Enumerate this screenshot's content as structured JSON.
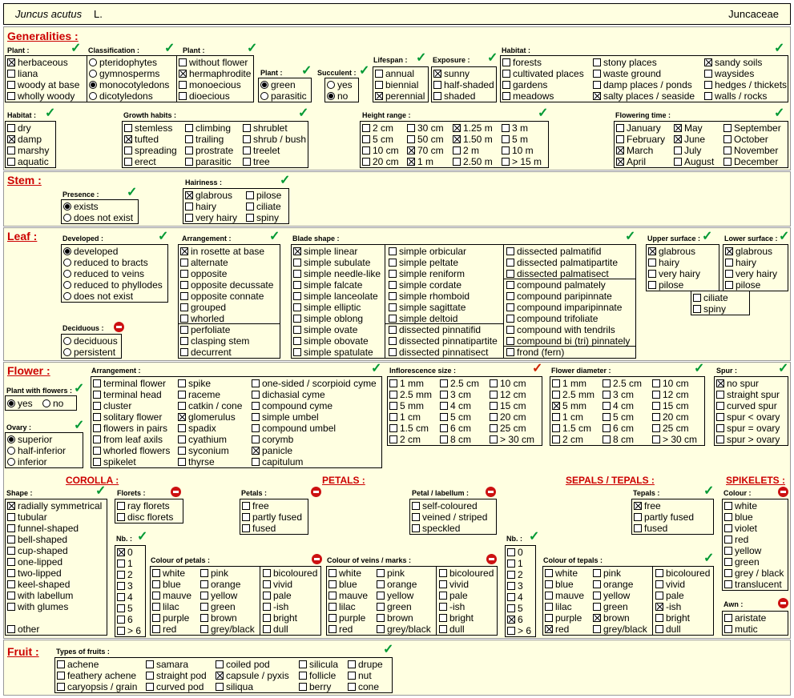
{
  "header": {
    "species": "Juncus acutus",
    "author": "L.",
    "family": "Juncaceae"
  },
  "sections": {
    "generalities": "Generalities :",
    "stem": "Stem :",
    "leaf": "Leaf :",
    "flower": "Flower :",
    "fruit": "Fruit :"
  },
  "subsections": {
    "corolla": "COROLLA :",
    "petals": "PETALS :",
    "sepals": "SEPALS / TEPALS :",
    "spikelets": "SPIKELETS :"
  },
  "labels": {
    "plant_type": "Plant :",
    "classification": "Classification :",
    "plant_flowers": "Plant :",
    "plant_color": "Plant :",
    "succulent": "Succulent :",
    "lifespan": "Lifespan :",
    "exposure": "Exposure :",
    "habitat": "Habitat :",
    "habitat_moist": "Habitat :",
    "growth_habits": "Growth habits :",
    "height_range": "Height range :",
    "flowering_time": "Flowering time :",
    "presence": "Presence :",
    "hairiness": "Hairiness :",
    "developed": "Developed :",
    "arrangement": "Arrangement :",
    "blade_shape": "Blade shape :",
    "upper_surface": "Upper surface :",
    "lower_surface": "Lower surface :",
    "deciduous": "Deciduous :",
    "flower_arrangement": "Arrangement :",
    "plant_with_flowers": "Plant with flowers :",
    "ovary": "Ovary :",
    "inflorescence_size": "Inflorescence size :",
    "flower_diameter": "Flower diameter :",
    "spur": "Spur :",
    "shape": "Shape :",
    "florets": "Florets :",
    "nb": "Nb. :",
    "colour_petals": "Colour of petals :",
    "petals": "Petals :",
    "petal_labellum": "Petal / labellum :",
    "colour_veins": "Colour of veins / marks :",
    "nb_sepals": "Nb. :",
    "colour_tepals": "Colour of tepals :",
    "tepals": "Tepals :",
    "colour": "Colour :",
    "awn": "Awn :",
    "types_of_fruits": "Types of fruits :"
  },
  "groups": {
    "plant_type": [
      [
        "herbaceous",
        1
      ],
      [
        "liana",
        0
      ],
      [
        "woody at base",
        0
      ],
      [
        "wholly woody",
        0
      ]
    ],
    "classification": [
      [
        "pteridophytes",
        0
      ],
      [
        "gymnosperms",
        0
      ],
      [
        "monocotyledons",
        1
      ],
      [
        "dicotyledons",
        0
      ]
    ],
    "plant_flowers": [
      [
        "without flower",
        0
      ],
      [
        "hermaphrodite",
        1
      ],
      [
        "monoecious",
        0
      ],
      [
        "dioecious",
        0
      ]
    ],
    "plant_color": [
      [
        "green",
        1
      ],
      [
        "parasitic",
        0
      ]
    ],
    "succulent": [
      [
        "yes",
        0
      ],
      [
        "no",
        1
      ]
    ],
    "lifespan": [
      [
        "annual",
        0
      ],
      [
        "biennial",
        0
      ],
      [
        "perennial",
        1
      ]
    ],
    "exposure": [
      [
        "sunny",
        1
      ],
      [
        "half-shaded",
        0
      ],
      [
        "shaded",
        0
      ]
    ],
    "habitat_a": [
      [
        "forests",
        0
      ],
      [
        "cultivated places",
        0
      ],
      [
        "gardens",
        0
      ],
      [
        "meadows",
        0
      ]
    ],
    "habitat_b": [
      [
        "stony places",
        0
      ],
      [
        "waste ground",
        0
      ],
      [
        "damp places / ponds",
        0
      ],
      [
        "salty places / seaside",
        1
      ]
    ],
    "habitat_c": [
      [
        "sandy soils",
        1
      ],
      [
        "waysides",
        0
      ],
      [
        "hedges / thickets",
        0
      ],
      [
        "walls / rocks",
        0
      ]
    ],
    "habitat_moist": [
      [
        "dry",
        0
      ],
      [
        "damp",
        1
      ],
      [
        "marshy",
        0
      ],
      [
        "aquatic",
        0
      ]
    ],
    "growth_a": [
      [
        "stemless",
        0
      ],
      [
        "tufted",
        1
      ],
      [
        "spreading",
        0
      ],
      [
        "erect",
        0
      ]
    ],
    "growth_b": [
      [
        "climbing",
        0
      ],
      [
        "trailing",
        0
      ],
      [
        "prostrate",
        0
      ],
      [
        "parasitic",
        0
      ]
    ],
    "growth_c": [
      [
        "shrublet",
        0
      ],
      [
        "shrub / bush",
        0
      ],
      [
        "treelet",
        0
      ],
      [
        "tree",
        0
      ]
    ],
    "height_a": [
      [
        "2 cm",
        0
      ],
      [
        "5 cm",
        0
      ],
      [
        "10 cm",
        0
      ],
      [
        "20 cm",
        0
      ]
    ],
    "height_b": [
      [
        "30 cm",
        0
      ],
      [
        "50 cm",
        0
      ],
      [
        "70 cm",
        1
      ],
      [
        "1 m",
        1
      ]
    ],
    "height_c": [
      [
        "1.25 m",
        1
      ],
      [
        "1.50 m",
        1
      ],
      [
        "2 m",
        0
      ],
      [
        "2.50 m",
        0
      ]
    ],
    "height_d": [
      [
        "3 m",
        0
      ],
      [
        "5 m",
        0
      ],
      [
        "10 m",
        0
      ],
      [
        "> 15 m",
        0
      ]
    ],
    "flowering_a": [
      [
        "January",
        0
      ],
      [
        "February",
        0
      ],
      [
        "March",
        1
      ],
      [
        "April",
        1
      ]
    ],
    "flowering_b": [
      [
        "May",
        1
      ],
      [
        "June",
        1
      ],
      [
        "July",
        0
      ],
      [
        "August",
        0
      ]
    ],
    "flowering_c": [
      [
        "September",
        0
      ],
      [
        "October",
        0
      ],
      [
        "November",
        0
      ],
      [
        "December",
        0
      ]
    ],
    "presence": [
      [
        "exists",
        1
      ],
      [
        "does not exist",
        0
      ]
    ],
    "hairiness_a": [
      [
        "glabrous",
        1
      ],
      [
        "hairy",
        0
      ],
      [
        "very hairy",
        0
      ]
    ],
    "hairiness_b": [
      [
        "pilose",
        0
      ],
      [
        "ciliate",
        0
      ],
      [
        "spiny",
        0
      ]
    ],
    "developed": [
      [
        "developed",
        1
      ],
      [
        "reduced to bracts",
        0
      ],
      [
        "reduced to veins",
        0
      ],
      [
        "reduced to phyllodes",
        0
      ],
      [
        "does not exist",
        0
      ]
    ],
    "deciduous": [
      [
        "deciduous",
        0
      ],
      [
        "persistent",
        0
      ]
    ],
    "leaf_arr_a": [
      [
        "in rosette at base",
        1
      ],
      [
        "alternate",
        0
      ],
      [
        "opposite",
        0
      ],
      [
        "opposite decussate",
        0
      ],
      [
        "opposite connate",
        0
      ],
      [
        "grouped",
        0
      ],
      [
        "whorled",
        0
      ]
    ],
    "leaf_arr_b": [
      [
        "perfoliate",
        0
      ],
      [
        "clasping stem",
        0
      ],
      [
        "decurrent",
        0
      ]
    ],
    "blade_a": [
      [
        "simple linear",
        1
      ],
      [
        "simple subulate",
        0
      ],
      [
        "simple needle-like",
        0
      ],
      [
        "simple falcate",
        0
      ],
      [
        "simple lanceolate",
        0
      ],
      [
        "simple elliptic",
        0
      ],
      [
        "simple oblong",
        0
      ],
      [
        "simple ovate",
        0
      ],
      [
        "simple obovate",
        0
      ],
      [
        "simple spatulate",
        0
      ]
    ],
    "blade_b": [
      [
        "simple orbicular",
        0
      ],
      [
        "simple peltate",
        0
      ],
      [
        "simple reniform",
        0
      ],
      [
        "simple cordate",
        0
      ],
      [
        "simple rhomboid",
        0
      ],
      [
        "simple sagittate",
        0
      ],
      [
        "simple deltoid",
        0
      ]
    ],
    "blade_b2": [
      [
        "dissected pinnatifid",
        0
      ],
      [
        "dissected pinnatipartite",
        0
      ],
      [
        "dissected pinnatisect",
        0
      ]
    ],
    "blade_c": [
      [
        "dissected palmatifid",
        0
      ],
      [
        "dissected palmatipartite",
        0
      ],
      [
        "dissected palmatisect",
        0
      ]
    ],
    "blade_c2": [
      [
        "compound palmately",
        0
      ],
      [
        "compound paripinnate",
        0
      ],
      [
        "compound imparipinnate",
        0
      ],
      [
        "compound trifoliate",
        0
      ],
      [
        "compound with tendrils",
        0
      ],
      [
        "compound bi (tri) pinnately",
        0
      ]
    ],
    "blade_c3": [
      [
        "frond  (fern)",
        0
      ]
    ],
    "upper_surface": [
      [
        "glabrous",
        1
      ],
      [
        "hairy",
        0
      ],
      [
        "very hairy",
        0
      ],
      [
        "pilose",
        0
      ]
    ],
    "lower_surface": [
      [
        "glabrous",
        1
      ],
      [
        "hairy",
        0
      ],
      [
        "very hairy",
        0
      ],
      [
        "pilose",
        0
      ]
    ],
    "surface_extra": [
      [
        "ciliate",
        0
      ],
      [
        "spiny",
        0
      ]
    ],
    "plant_with_flowers": [
      [
        "yes",
        1
      ],
      [
        "no",
        0
      ]
    ],
    "ovary": [
      [
        "superior",
        1
      ],
      [
        "half-inferior",
        0
      ],
      [
        "inferior",
        0
      ]
    ],
    "farr_a": [
      [
        "terminal flower",
        0
      ],
      [
        "terminal head",
        0
      ],
      [
        "cluster",
        0
      ],
      [
        "solitary flower",
        0
      ],
      [
        "flowers in pairs",
        0
      ],
      [
        "from leaf axils",
        0
      ],
      [
        "whorled flowers",
        0
      ],
      [
        "spikelet",
        0
      ]
    ],
    "farr_b": [
      [
        "spike",
        0
      ],
      [
        "raceme",
        0
      ],
      [
        "catkin / cone",
        0
      ],
      [
        "glomerulus",
        1
      ],
      [
        "spadix",
        0
      ],
      [
        "cyathium",
        0
      ],
      [
        "syconium",
        0
      ],
      [
        "thyrse",
        0
      ]
    ],
    "farr_c": [
      [
        "one-sided / scorpioid cyme",
        0
      ],
      [
        "dichasial cyme",
        0
      ],
      [
        "compound cyme",
        0
      ],
      [
        "simple umbel",
        0
      ],
      [
        "compound umbel",
        0
      ],
      [
        "corymb",
        0
      ],
      [
        "panicle",
        1
      ],
      [
        "capitulum",
        0
      ]
    ],
    "infl_a": [
      [
        "1 mm",
        0
      ],
      [
        "2.5 mm",
        0
      ],
      [
        "5 mm",
        0
      ],
      [
        "1 cm",
        0
      ],
      [
        "1.5 cm",
        0
      ],
      [
        "2 cm",
        0
      ]
    ],
    "infl_b": [
      [
        "2.5 cm",
        0
      ],
      [
        "3 cm",
        0
      ],
      [
        "4 cm",
        0
      ],
      [
        "5 cm",
        0
      ],
      [
        "6 cm",
        0
      ],
      [
        "8 cm",
        0
      ]
    ],
    "infl_c": [
      [
        "10 cm",
        0
      ],
      [
        "12 cm",
        0
      ],
      [
        "15 cm",
        0
      ],
      [
        "20 cm",
        0
      ],
      [
        "25 cm",
        0
      ],
      [
        "> 30 cm",
        0
      ]
    ],
    "diam_a": [
      [
        "1 mm",
        0
      ],
      [
        "2.5 mm",
        0
      ],
      [
        "5 mm",
        1
      ],
      [
        "1 cm",
        0
      ],
      [
        "1.5 cm",
        0
      ],
      [
        "2 cm",
        0
      ]
    ],
    "diam_b": [
      [
        "2.5 cm",
        0
      ],
      [
        "3 cm",
        0
      ],
      [
        "4 cm",
        0
      ],
      [
        "5 cm",
        0
      ],
      [
        "6 cm",
        0
      ],
      [
        "8 cm",
        0
      ]
    ],
    "diam_c": [
      [
        "10 cm",
        0
      ],
      [
        "12 cm",
        0
      ],
      [
        "15 cm",
        0
      ],
      [
        "20 cm",
        0
      ],
      [
        "25 cm",
        0
      ],
      [
        "> 30 cm",
        0
      ]
    ],
    "spur": [
      [
        "no spur",
        1
      ],
      [
        "straight spur",
        0
      ],
      [
        "curved spur",
        0
      ],
      [
        "spur < ovary",
        0
      ],
      [
        "spur = ovary",
        0
      ],
      [
        "spur > ovary",
        0
      ]
    ],
    "shape": [
      [
        "radially symmetrical",
        1
      ],
      [
        "tubular",
        0
      ],
      [
        "funnel-shaped",
        0
      ],
      [
        "bell-shaped",
        0
      ],
      [
        "cup-shaped",
        0
      ],
      [
        "one-lipped",
        0
      ],
      [
        "two-lipped",
        0
      ],
      [
        "keel-shaped",
        0
      ],
      [
        "with labellum",
        0
      ],
      [
        "with glumes",
        0
      ]
    ],
    "shape_other": [
      [
        "other",
        0
      ]
    ],
    "florets": [
      [
        "ray florets",
        0
      ],
      [
        "disc florets",
        0
      ]
    ],
    "nb": [
      [
        "0",
        1
      ],
      [
        "1",
        0
      ],
      [
        "2",
        0
      ],
      [
        "3",
        0
      ],
      [
        "4",
        0
      ],
      [
        "5",
        0
      ],
      [
        "6",
        0
      ],
      [
        "> 6",
        0
      ]
    ],
    "cpet_a": [
      [
        "white",
        0
      ],
      [
        "blue",
        0
      ],
      [
        "mauve",
        0
      ],
      [
        "lilac",
        0
      ],
      [
        "purple",
        0
      ],
      [
        "red",
        0
      ]
    ],
    "cpet_b": [
      [
        "pink",
        0
      ],
      [
        "orange",
        0
      ],
      [
        "yellow",
        0
      ],
      [
        "green",
        0
      ],
      [
        "brown",
        0
      ],
      [
        "grey/black",
        0
      ]
    ],
    "cpet_c": [
      [
        "bicoloured",
        0
      ],
      [
        "vivid",
        0
      ],
      [
        "pale",
        0
      ],
      [
        "-ish",
        0
      ],
      [
        "bright",
        0
      ],
      [
        "dull",
        0
      ]
    ],
    "petals": [
      [
        "free",
        0
      ],
      [
        "partly fused",
        0
      ],
      [
        "fused",
        0
      ]
    ],
    "petal_labellum": [
      [
        "self-coloured",
        0
      ],
      [
        "veined / striped",
        0
      ],
      [
        "speckled",
        0
      ]
    ],
    "cvein_a": [
      [
        "white",
        0
      ],
      [
        "blue",
        0
      ],
      [
        "mauve",
        0
      ],
      [
        "lilac",
        0
      ],
      [
        "purple",
        0
      ],
      [
        "red",
        0
      ]
    ],
    "cvein_b": [
      [
        "pink",
        0
      ],
      [
        "orange",
        0
      ],
      [
        "yellow",
        0
      ],
      [
        "green",
        0
      ],
      [
        "brown",
        0
      ],
      [
        "grey/black",
        0
      ]
    ],
    "cvein_c": [
      [
        "bicoloured",
        0
      ],
      [
        "vivid",
        0
      ],
      [
        "pale",
        0
      ],
      [
        "-ish",
        0
      ],
      [
        "bright",
        0
      ],
      [
        "dull",
        0
      ]
    ],
    "nb_sepals": [
      [
        "0",
        0
      ],
      [
        "1",
        0
      ],
      [
        "2",
        0
      ],
      [
        "3",
        0
      ],
      [
        "4",
        0
      ],
      [
        "5",
        0
      ],
      [
        "6",
        1
      ],
      [
        "> 6",
        0
      ]
    ],
    "ctep_a": [
      [
        "white",
        0
      ],
      [
        "blue",
        0
      ],
      [
        "mauve",
        0
      ],
      [
        "lilac",
        0
      ],
      [
        "purple",
        0
      ],
      [
        "red",
        1
      ]
    ],
    "ctep_b": [
      [
        "pink",
        0
      ],
      [
        "orange",
        0
      ],
      [
        "yellow",
        0
      ],
      [
        "green",
        0
      ],
      [
        "brown",
        1
      ],
      [
        "grey/black",
        0
      ]
    ],
    "ctep_c": [
      [
        "bicoloured",
        0
      ],
      [
        "vivid",
        0
      ],
      [
        "pale",
        0
      ],
      [
        "-ish",
        1
      ],
      [
        "bright",
        0
      ],
      [
        "dull",
        0
      ]
    ],
    "tepals": [
      [
        "free",
        1
      ],
      [
        "partly fused",
        0
      ],
      [
        "fused",
        0
      ]
    ],
    "colour": [
      [
        "white",
        0
      ],
      [
        "blue",
        0
      ],
      [
        "violet",
        0
      ],
      [
        "red",
        0
      ],
      [
        "yellow",
        0
      ],
      [
        "green",
        0
      ],
      [
        "grey / black",
        0
      ],
      [
        "translucent",
        0
      ]
    ],
    "awn": [
      [
        "aristate",
        0
      ],
      [
        "mutic",
        0
      ]
    ],
    "fruit_a": [
      [
        "achene",
        0
      ],
      [
        "feathery achene",
        0
      ],
      [
        "caryopsis / grain",
        0
      ]
    ],
    "fruit_b": [
      [
        "samara",
        0
      ],
      [
        "straight pod",
        0
      ],
      [
        "curved pod",
        0
      ]
    ],
    "fruit_c": [
      [
        "coiled pod",
        0
      ],
      [
        "capsule / pyxis",
        1
      ],
      [
        "siliqua",
        0
      ]
    ],
    "fruit_d": [
      [
        "silicula",
        0
      ],
      [
        "follicle",
        0
      ],
      [
        "berry",
        0
      ]
    ],
    "fruit_e": [
      [
        "drupe",
        0
      ],
      [
        "nut",
        0
      ],
      [
        "cone",
        0
      ]
    ]
  }
}
